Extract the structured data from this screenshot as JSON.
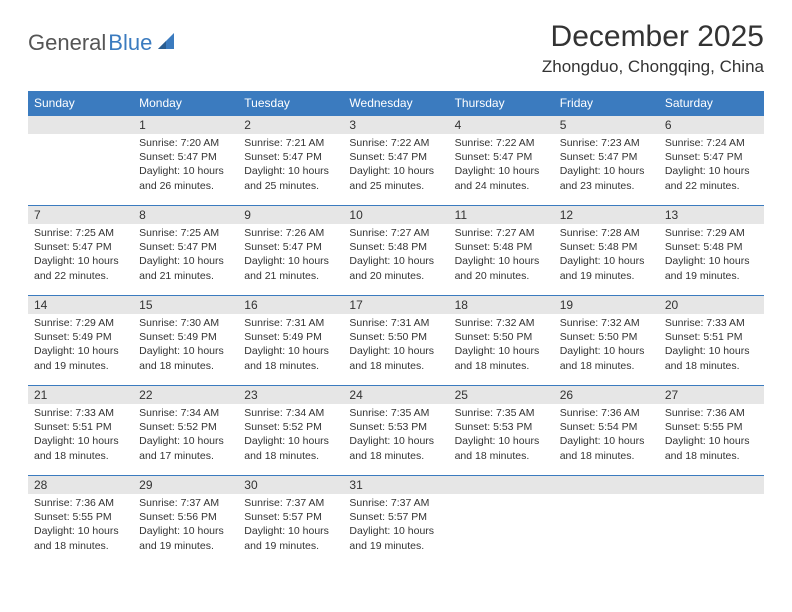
{
  "logo": {
    "text1": "General",
    "text2": "Blue"
  },
  "title": "December 2025",
  "location": "Zhongduo, Chongqing, China",
  "colors": {
    "header_bg": "#3b7bbf",
    "header_text": "#ffffff",
    "daynum_bg": "#e6e6e6",
    "daynum_border": "#3b7bbf",
    "body_text": "#333333",
    "logo_gray": "#555555",
    "logo_blue": "#3b7bbf"
  },
  "day_headers": [
    "Sunday",
    "Monday",
    "Tuesday",
    "Wednesday",
    "Thursday",
    "Friday",
    "Saturday"
  ],
  "weeks": [
    [
      {
        "n": "",
        "sr": "",
        "ss": "",
        "dl": ""
      },
      {
        "n": "1",
        "sr": "Sunrise: 7:20 AM",
        "ss": "Sunset: 5:47 PM",
        "dl": "Daylight: 10 hours and 26 minutes."
      },
      {
        "n": "2",
        "sr": "Sunrise: 7:21 AM",
        "ss": "Sunset: 5:47 PM",
        "dl": "Daylight: 10 hours and 25 minutes."
      },
      {
        "n": "3",
        "sr": "Sunrise: 7:22 AM",
        "ss": "Sunset: 5:47 PM",
        "dl": "Daylight: 10 hours and 25 minutes."
      },
      {
        "n": "4",
        "sr": "Sunrise: 7:22 AM",
        "ss": "Sunset: 5:47 PM",
        "dl": "Daylight: 10 hours and 24 minutes."
      },
      {
        "n": "5",
        "sr": "Sunrise: 7:23 AM",
        "ss": "Sunset: 5:47 PM",
        "dl": "Daylight: 10 hours and 23 minutes."
      },
      {
        "n": "6",
        "sr": "Sunrise: 7:24 AM",
        "ss": "Sunset: 5:47 PM",
        "dl": "Daylight: 10 hours and 22 minutes."
      }
    ],
    [
      {
        "n": "7",
        "sr": "Sunrise: 7:25 AM",
        "ss": "Sunset: 5:47 PM",
        "dl": "Daylight: 10 hours and 22 minutes."
      },
      {
        "n": "8",
        "sr": "Sunrise: 7:25 AM",
        "ss": "Sunset: 5:47 PM",
        "dl": "Daylight: 10 hours and 21 minutes."
      },
      {
        "n": "9",
        "sr": "Sunrise: 7:26 AM",
        "ss": "Sunset: 5:47 PM",
        "dl": "Daylight: 10 hours and 21 minutes."
      },
      {
        "n": "10",
        "sr": "Sunrise: 7:27 AM",
        "ss": "Sunset: 5:48 PM",
        "dl": "Daylight: 10 hours and 20 minutes."
      },
      {
        "n": "11",
        "sr": "Sunrise: 7:27 AM",
        "ss": "Sunset: 5:48 PM",
        "dl": "Daylight: 10 hours and 20 minutes."
      },
      {
        "n": "12",
        "sr": "Sunrise: 7:28 AM",
        "ss": "Sunset: 5:48 PM",
        "dl": "Daylight: 10 hours and 19 minutes."
      },
      {
        "n": "13",
        "sr": "Sunrise: 7:29 AM",
        "ss": "Sunset: 5:48 PM",
        "dl": "Daylight: 10 hours and 19 minutes."
      }
    ],
    [
      {
        "n": "14",
        "sr": "Sunrise: 7:29 AM",
        "ss": "Sunset: 5:49 PM",
        "dl": "Daylight: 10 hours and 19 minutes."
      },
      {
        "n": "15",
        "sr": "Sunrise: 7:30 AM",
        "ss": "Sunset: 5:49 PM",
        "dl": "Daylight: 10 hours and 18 minutes."
      },
      {
        "n": "16",
        "sr": "Sunrise: 7:31 AM",
        "ss": "Sunset: 5:49 PM",
        "dl": "Daylight: 10 hours and 18 minutes."
      },
      {
        "n": "17",
        "sr": "Sunrise: 7:31 AM",
        "ss": "Sunset: 5:50 PM",
        "dl": "Daylight: 10 hours and 18 minutes."
      },
      {
        "n": "18",
        "sr": "Sunrise: 7:32 AM",
        "ss": "Sunset: 5:50 PM",
        "dl": "Daylight: 10 hours and 18 minutes."
      },
      {
        "n": "19",
        "sr": "Sunrise: 7:32 AM",
        "ss": "Sunset: 5:50 PM",
        "dl": "Daylight: 10 hours and 18 minutes."
      },
      {
        "n": "20",
        "sr": "Sunrise: 7:33 AM",
        "ss": "Sunset: 5:51 PM",
        "dl": "Daylight: 10 hours and 18 minutes."
      }
    ],
    [
      {
        "n": "21",
        "sr": "Sunrise: 7:33 AM",
        "ss": "Sunset: 5:51 PM",
        "dl": "Daylight: 10 hours and 18 minutes."
      },
      {
        "n": "22",
        "sr": "Sunrise: 7:34 AM",
        "ss": "Sunset: 5:52 PM",
        "dl": "Daylight: 10 hours and 17 minutes."
      },
      {
        "n": "23",
        "sr": "Sunrise: 7:34 AM",
        "ss": "Sunset: 5:52 PM",
        "dl": "Daylight: 10 hours and 18 minutes."
      },
      {
        "n": "24",
        "sr": "Sunrise: 7:35 AM",
        "ss": "Sunset: 5:53 PM",
        "dl": "Daylight: 10 hours and 18 minutes."
      },
      {
        "n": "25",
        "sr": "Sunrise: 7:35 AM",
        "ss": "Sunset: 5:53 PM",
        "dl": "Daylight: 10 hours and 18 minutes."
      },
      {
        "n": "26",
        "sr": "Sunrise: 7:36 AM",
        "ss": "Sunset: 5:54 PM",
        "dl": "Daylight: 10 hours and 18 minutes."
      },
      {
        "n": "27",
        "sr": "Sunrise: 7:36 AM",
        "ss": "Sunset: 5:55 PM",
        "dl": "Daylight: 10 hours and 18 minutes."
      }
    ],
    [
      {
        "n": "28",
        "sr": "Sunrise: 7:36 AM",
        "ss": "Sunset: 5:55 PM",
        "dl": "Daylight: 10 hours and 18 minutes."
      },
      {
        "n": "29",
        "sr": "Sunrise: 7:37 AM",
        "ss": "Sunset: 5:56 PM",
        "dl": "Daylight: 10 hours and 19 minutes."
      },
      {
        "n": "30",
        "sr": "Sunrise: 7:37 AM",
        "ss": "Sunset: 5:57 PM",
        "dl": "Daylight: 10 hours and 19 minutes."
      },
      {
        "n": "31",
        "sr": "Sunrise: 7:37 AM",
        "ss": "Sunset: 5:57 PM",
        "dl": "Daylight: 10 hours and 19 minutes."
      },
      {
        "n": "",
        "sr": "",
        "ss": "",
        "dl": ""
      },
      {
        "n": "",
        "sr": "",
        "ss": "",
        "dl": ""
      },
      {
        "n": "",
        "sr": "",
        "ss": "",
        "dl": ""
      }
    ]
  ]
}
